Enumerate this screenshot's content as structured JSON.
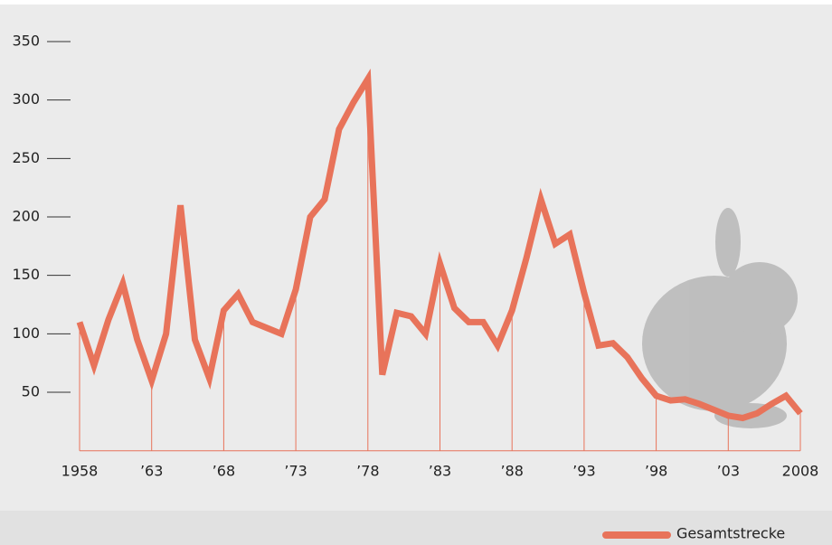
{
  "chart_data": {
    "type": "line",
    "x": [
      1958,
      1959,
      1960,
      1961,
      1962,
      1963,
      1964,
      1965,
      1966,
      1967,
      1968,
      1969,
      1970,
      1971,
      1972,
      1973,
      1974,
      1975,
      1976,
      1977,
      1978,
      1979,
      1980,
      1981,
      1982,
      1983,
      1984,
      1985,
      1986,
      1987,
      1988,
      1989,
      1990,
      1991,
      1992,
      1993,
      1994,
      1995,
      1996,
      1997,
      1998,
      1999,
      2000,
      2001,
      2002,
      2003,
      2004,
      2005,
      2006,
      2007,
      2008
    ],
    "series": [
      {
        "name": "Gesamtstrecke",
        "color": "#e8735a",
        "values": [
          110,
          73,
          112,
          143,
          95,
          60,
          100,
          210,
          95,
          62,
          120,
          134,
          110,
          105,
          100,
          138,
          200,
          215,
          275,
          298,
          318,
          65,
          118,
          115,
          100,
          160,
          122,
          110,
          110,
          90,
          120,
          165,
          215,
          177,
          185,
          135,
          90,
          92,
          80,
          62,
          47,
          43,
          44,
          40,
          35,
          30,
          28,
          32,
          40,
          47,
          32
        ]
      }
    ],
    "xlim": [
      1958,
      2008
    ],
    "xticks": [
      1958,
      {
        "value": 1963,
        "label": "’63"
      },
      {
        "value": 1968,
        "label": "’68"
      },
      {
        "value": 1973,
        "label": "’73"
      },
      {
        "value": 1978,
        "label": "’78"
      },
      {
        "value": 1983,
        "label": "’83"
      },
      {
        "value": 1988,
        "label": "’88"
      },
      {
        "value": 1993,
        "label": "’93"
      },
      {
        "value": 1998,
        "label": "’98"
      },
      {
        "value": 2003,
        "label": "’03"
      },
      2008
    ],
    "ylim": [
      0,
      350
    ],
    "yticks": [
      50,
      100,
      150,
      200,
      250,
      300,
      350
    ]
  }
}
